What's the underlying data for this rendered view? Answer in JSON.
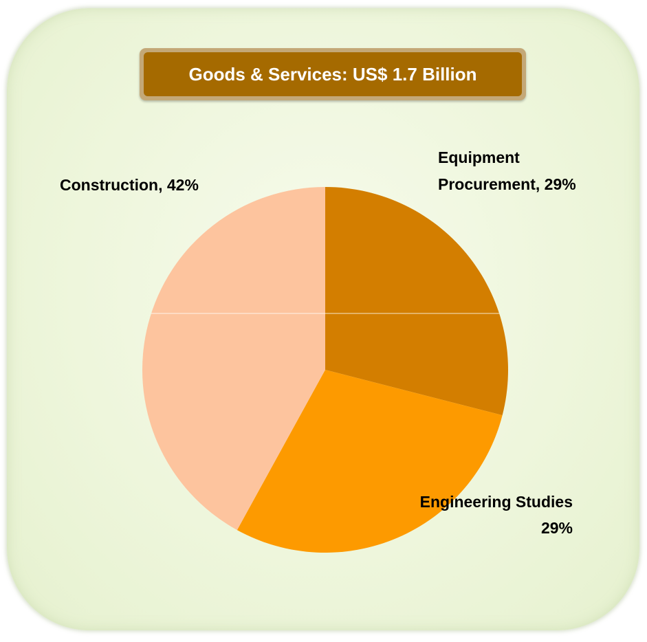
{
  "title": "Goods & Services: US$ 1.7 Billion",
  "chart_data": {
    "type": "pie",
    "title": "Goods & Services: US$ 1.7 Billion",
    "slices": [
      {
        "label_lines": [
          "Equipment",
          "Procurement, 29%"
        ],
        "name": "Equipment Procurement",
        "value": 29,
        "color": "#d37e00"
      },
      {
        "label_lines": [
          "Engineering Studies",
          "29%"
        ],
        "name": "Engineering Studies",
        "value": 29,
        "color": "#fd9a00"
      },
      {
        "label_lines": [
          "Construction, 42%"
        ],
        "name": "Construction",
        "value": 42,
        "color": "#fdc49e"
      }
    ],
    "start_angle_deg": 0,
    "direction": "clockwise"
  },
  "colors": {
    "panel_background": "#eef6dc",
    "title_box": "#a56a00",
    "title_border": "#c4a877"
  }
}
